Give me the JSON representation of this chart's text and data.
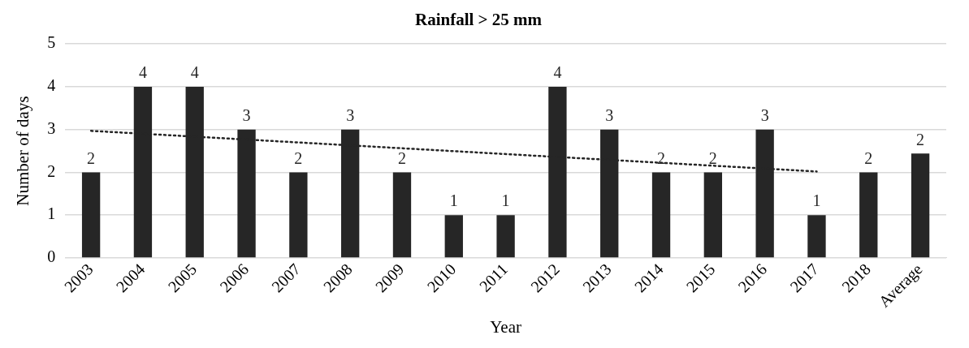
{
  "chart_data": {
    "type": "bar",
    "title": "Rainfall > 25 mm",
    "xlabel": "Year",
    "ylabel": "Number of days",
    "categories": [
      "2003",
      "2004",
      "2005",
      "2006",
      "2007",
      "2008",
      "2009",
      "2010",
      "2011",
      "2012",
      "2013",
      "2014",
      "2015",
      "2016",
      "2017",
      "2018",
      "Average"
    ],
    "series": [
      {
        "color": "#262626",
        "values": [
          2,
          4,
          4,
          3,
          2,
          3,
          2,
          1,
          1,
          4,
          3,
          2,
          2,
          3,
          1,
          2,
          2.44
        ],
        "value_labels": [
          "2",
          "4",
          "4",
          "3",
          "2",
          "3",
          "2",
          "1",
          "1",
          "4",
          "3",
          "2",
          "2",
          "3",
          "1",
          "2",
          "2"
        ]
      },
      {
        "type": "line",
        "values": [
          2.97,
          null,
          null,
          null,
          null,
          null,
          null,
          null,
          null,
          null,
          null,
          null,
          null,
          null,
          2.02,
          null,
          null
        ],
        "color": "#262626",
        "line_style": "dotted",
        "marker": "none"
      }
    ],
    "ylim": [
      0,
      5
    ],
    "yticks": [
      0,
      1,
      2,
      3,
      4,
      5
    ],
    "grid": "y",
    "legend": false
  }
}
